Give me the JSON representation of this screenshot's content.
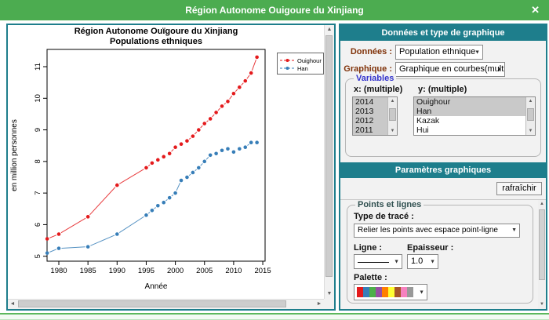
{
  "window": {
    "title": "Région Autonome Ouigoure du Xinjiang",
    "close": "✕"
  },
  "chart_data": {
    "type": "line",
    "title": "Région Autonome Ouïgoure du Xinjiang",
    "subtitle": "Populations ethniques",
    "xlabel": "Année",
    "ylabel": "en million personnes",
    "xlim": [
      1977,
      2016
    ],
    "ylim": [
      4.8,
      11.5
    ],
    "x_ticks": [
      1980,
      1985,
      1990,
      1995,
      2000,
      2005,
      2010,
      2015
    ],
    "y_ticks": [
      5,
      6,
      7,
      8,
      9,
      10,
      11
    ],
    "grid": false,
    "legend_position": "top-right-outside",
    "point_style": "filled-circle-with-gapped-line",
    "x": [
      1978,
      1980,
      1985,
      1990,
      1995,
      1996,
      1997,
      1998,
      1999,
      2000,
      2001,
      2002,
      2003,
      2004,
      2005,
      2006,
      2007,
      2008,
      2009,
      2010,
      2011,
      2012,
      2013,
      2014
    ],
    "series": [
      {
        "name": "Ouighour",
        "color": "#e41a1c",
        "values": [
          5.55,
          5.7,
          6.25,
          7.25,
          7.8,
          7.95,
          8.05,
          8.15,
          8.25,
          8.45,
          8.55,
          8.65,
          8.8,
          9.0,
          9.2,
          9.35,
          9.55,
          9.75,
          9.9,
          10.15,
          10.35,
          10.55,
          10.8,
          11.3
        ]
      },
      {
        "name": "Han",
        "color": "#377eb8",
        "values": [
          5.1,
          5.25,
          5.3,
          5.7,
          6.3,
          6.45,
          6.6,
          6.7,
          6.85,
          7.0,
          7.4,
          7.5,
          7.65,
          7.8,
          8.0,
          8.2,
          8.25,
          8.35,
          8.4,
          8.3,
          8.4,
          8.45,
          8.6,
          8.6
        ]
      }
    ]
  },
  "data_panel": {
    "header": "Données et type de graphique",
    "donnees_label": "Données :",
    "donnees_value": "Population ethnique",
    "graphique_label": "Graphique :",
    "graphique_value": "Graphique en courbes(multiple)",
    "variables": {
      "legend": "Variables",
      "x_label": "x: (multiple)",
      "y_label": "y: (multiple)",
      "x_items": [
        {
          "label": "2014",
          "selected": true
        },
        {
          "label": "2013",
          "selected": true
        },
        {
          "label": "2012",
          "selected": true
        },
        {
          "label": "2011",
          "selected": true
        }
      ],
      "y_items": [
        {
          "label": "Ouighour",
          "selected": true
        },
        {
          "label": "Han",
          "selected": true
        },
        {
          "label": "Kazak",
          "selected": false
        },
        {
          "label": "Hui",
          "selected": false
        }
      ]
    }
  },
  "params_panel": {
    "header": "Paramètres graphiques",
    "refresh": "rafraîchir",
    "fieldset": "Points et lignes",
    "trace_label": "Type de tracé :",
    "trace_value": "Relier les points avec espace point-ligne",
    "ligne_label": "Ligne :",
    "epaisseur_label": "Epaisseur :",
    "epaisseur_value": "1.0",
    "palette_label": "Palette :",
    "palette": [
      "#e41a1c",
      "#377eb8",
      "#4daf4a",
      "#984ea3",
      "#ff7f00",
      "#ffff33",
      "#a65628",
      "#f781bf",
      "#999999"
    ]
  },
  "colors": {
    "titlebar_green": "#4cac50",
    "accent_teal": "#1e7e8c",
    "label_maroon": "#80330a",
    "variables_blue": "#3333cc",
    "selected_item_bg": "#c9c9c9"
  }
}
